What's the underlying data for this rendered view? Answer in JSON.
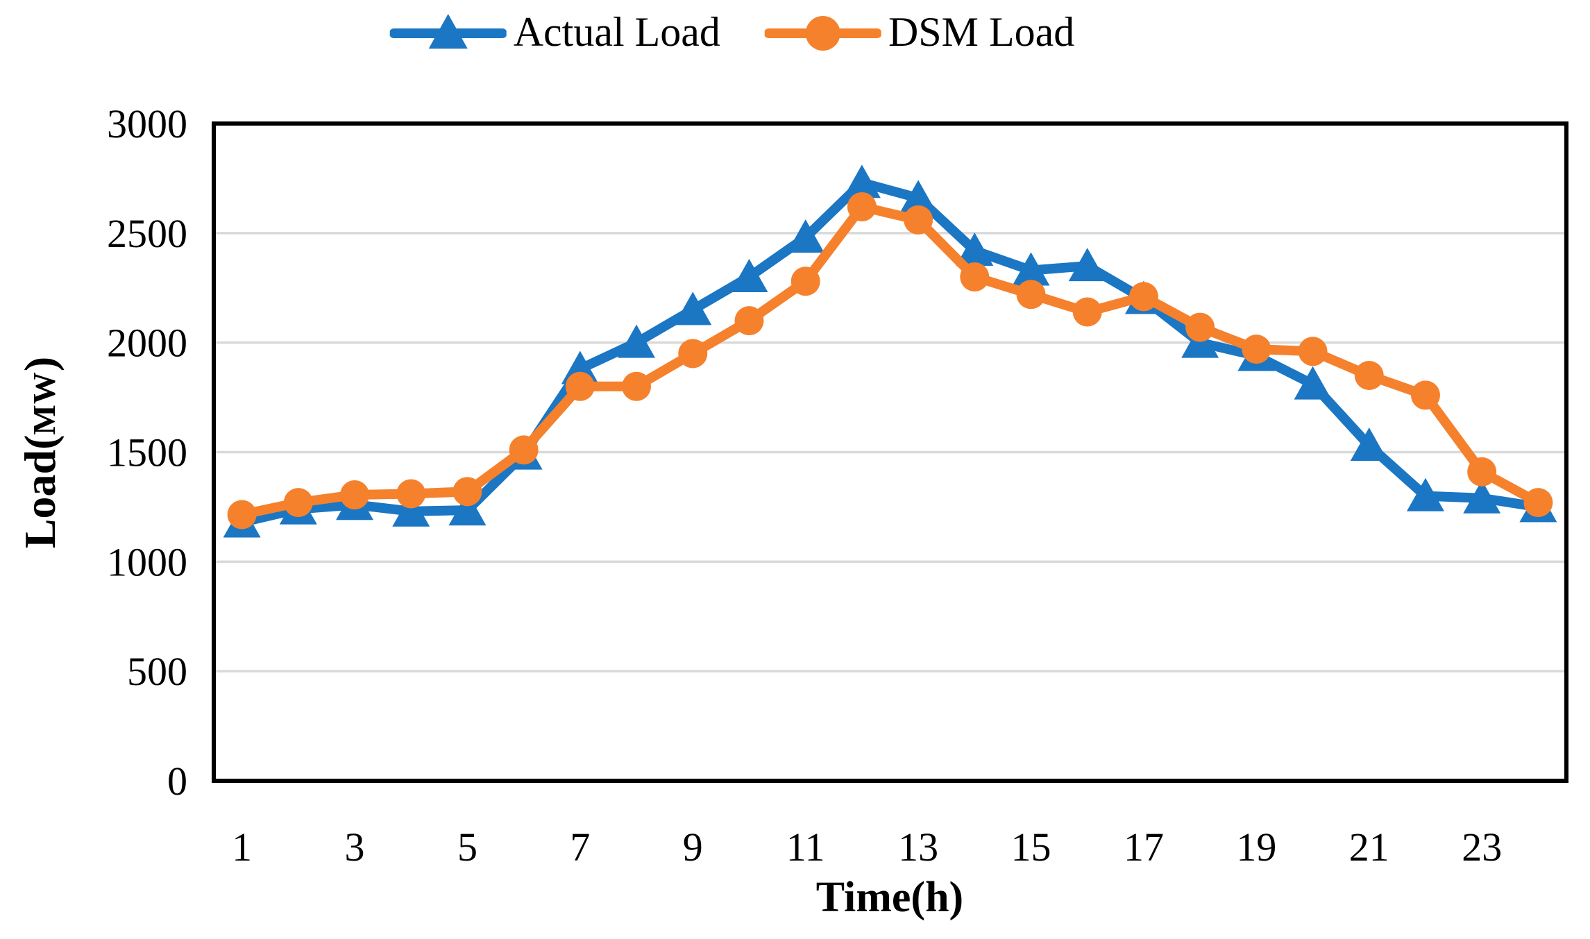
{
  "legend": {
    "items": [
      {
        "label": "Actual Load",
        "color": "#1b76c4",
        "marker": "triangle"
      },
      {
        "label": "DSM Load",
        "color": "#f5812d",
        "marker": "circle"
      }
    ]
  },
  "chart_data": {
    "type": "line",
    "title": "",
    "xlabel": "Time(h)",
    "ylabel": "Load(MW)",
    "ylabel_parts": [
      "Load(",
      "MW",
      ")"
    ],
    "x": [
      1,
      2,
      3,
      4,
      5,
      6,
      7,
      8,
      9,
      10,
      11,
      12,
      13,
      14,
      15,
      16,
      17,
      18,
      19,
      20,
      21,
      22,
      23,
      24
    ],
    "x_ticks": [
      1,
      3,
      5,
      7,
      9,
      11,
      13,
      15,
      17,
      19,
      21,
      23
    ],
    "y_ticks": [
      0,
      500,
      1000,
      1500,
      2000,
      2500,
      3000
    ],
    "ylim": [
      0,
      3000
    ],
    "grid": "horizontal-gridlines",
    "legend_position": "top-center",
    "axis_color": "#000000",
    "gridline_color": "#d9d9d9",
    "series": [
      {
        "name": "Actual Load",
        "color": "#1b76c4",
        "marker": "triangle",
        "values": [
          1180,
          1240,
          1260,
          1230,
          1235,
          1490,
          1880,
          2000,
          2150,
          2300,
          2480,
          2730,
          2660,
          2420,
          2330,
          2350,
          2200,
          2000,
          1940,
          1810,
          1530,
          1300,
          1290,
          1250
        ]
      },
      {
        "name": "DSM Load",
        "color": "#f5812d",
        "marker": "circle",
        "values": [
          1215,
          1270,
          1305,
          1310,
          1320,
          1510,
          1800,
          1800,
          1950,
          2100,
          2280,
          2620,
          2560,
          2300,
          2220,
          2140,
          2210,
          2070,
          1970,
          1960,
          1850,
          1760,
          1410,
          1270
        ]
      }
    ]
  }
}
